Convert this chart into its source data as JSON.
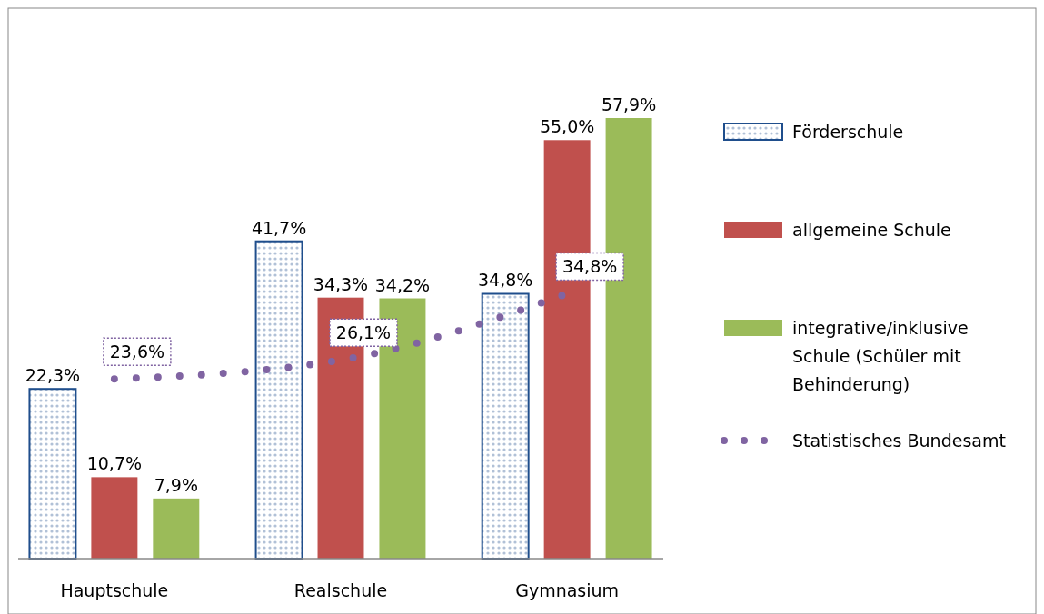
{
  "chart_data": {
    "type": "bar",
    "categories": [
      "Hauptschule",
      "Realschule",
      "Gymnasium"
    ],
    "legend": "right",
    "series": [
      {
        "name": "Förderschule",
        "color": "#1f4e8c",
        "values": [
          22.3,
          41.7,
          34.8
        ],
        "value_labels": [
          "22,3%",
          "41,7%",
          "34,8%"
        ]
      },
      {
        "name": "allgemeine Schule",
        "color": "#c0504d",
        "values": [
          10.7,
          34.3,
          55.0
        ],
        "value_labels": [
          "10,7%",
          "34,3%",
          "55,0%"
        ]
      },
      {
        "name": "integrative/inklusive Schule (Schüler mit Behinderung)",
        "color": "#9bbb59",
        "values": [
          7.9,
          34.2,
          57.9
        ],
        "value_labels": [
          "7,9%",
          "34,2%",
          "57,9%"
        ]
      },
      {
        "name": "Statistisches Bundesamt",
        "type": "line",
        "line_style": "dotted",
        "marker": "none",
        "color": "#8064a2",
        "values": [
          23.6,
          26.1,
          34.8
        ],
        "value_labels": [
          "23,6%",
          "26,1%",
          "34,8%"
        ]
      }
    ]
  }
}
